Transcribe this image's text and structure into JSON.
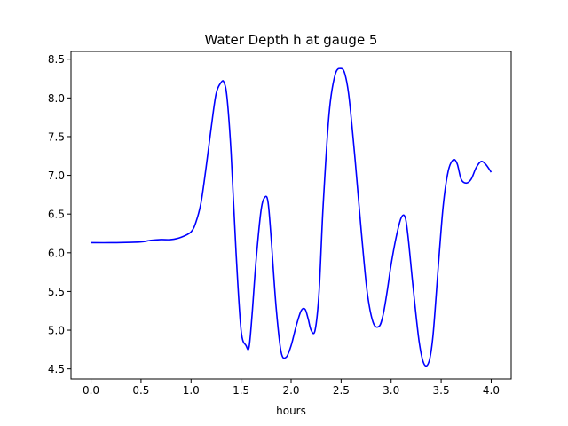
{
  "chart_data": {
    "type": "line",
    "title": "Water Depth h at gauge 5",
    "xlabel": "hours",
    "ylabel": "",
    "xlim": [
      -0.2,
      4.2
    ],
    "ylim": [
      4.37,
      8.6
    ],
    "xticks": [
      0.0,
      0.5,
      1.0,
      1.5,
      2.0,
      2.5,
      3.0,
      3.5,
      4.0
    ],
    "xtick_labels": [
      "0.0",
      "0.5",
      "1.0",
      "1.5",
      "2.0",
      "2.5",
      "3.0",
      "3.5",
      "4.0"
    ],
    "yticks": [
      4.5,
      5.0,
      5.5,
      6.0,
      6.5,
      7.0,
      7.5,
      8.0,
      8.5
    ],
    "ytick_labels": [
      "4.5",
      "5.0",
      "5.5",
      "6.0",
      "6.5",
      "7.0",
      "7.5",
      "8.0",
      "8.5"
    ],
    "grid": false,
    "series": [
      {
        "color": "#0000ff",
        "x": [
          0.0,
          0.2,
          0.4,
          0.5,
          0.6,
          0.7,
          0.8,
          0.9,
          1.0,
          1.05,
          1.1,
          1.15,
          1.2,
          1.25,
          1.3,
          1.33,
          1.36,
          1.4,
          1.45,
          1.5,
          1.55,
          1.58,
          1.61,
          1.65,
          1.7,
          1.74,
          1.77,
          1.8,
          1.85,
          1.9,
          1.95,
          2.0,
          2.05,
          2.1,
          2.14,
          2.17,
          2.2,
          2.24,
          2.28,
          2.32,
          2.38,
          2.44,
          2.5,
          2.54,
          2.58,
          2.64,
          2.7,
          2.76,
          2.82,
          2.88,
          2.92,
          2.96,
          3.0,
          3.05,
          3.1,
          3.14,
          3.17,
          3.22,
          3.28,
          3.33,
          3.38,
          3.42,
          3.47,
          3.52,
          3.57,
          3.62,
          3.66,
          3.7,
          3.75,
          3.8,
          3.85,
          3.9,
          3.94,
          3.97,
          4.0
        ],
        "y": [
          6.13,
          6.13,
          6.135,
          6.14,
          6.16,
          6.17,
          6.17,
          6.2,
          6.27,
          6.4,
          6.65,
          7.1,
          7.6,
          8.05,
          8.2,
          8.2,
          8.0,
          7.3,
          6.0,
          5.0,
          4.8,
          4.78,
          5.2,
          5.9,
          6.55,
          6.72,
          6.65,
          6.2,
          5.3,
          4.72,
          4.65,
          4.8,
          5.05,
          5.25,
          5.27,
          5.15,
          5.0,
          5.0,
          5.5,
          6.6,
          7.8,
          8.3,
          8.38,
          8.3,
          8.0,
          7.2,
          6.3,
          5.5,
          5.1,
          5.05,
          5.2,
          5.5,
          5.85,
          6.2,
          6.45,
          6.46,
          6.2,
          5.55,
          4.85,
          4.56,
          4.6,
          4.95,
          5.8,
          6.6,
          7.05,
          7.2,
          7.15,
          6.95,
          6.9,
          6.95,
          7.1,
          7.18,
          7.15,
          7.1,
          7.04
        ]
      }
    ]
  }
}
